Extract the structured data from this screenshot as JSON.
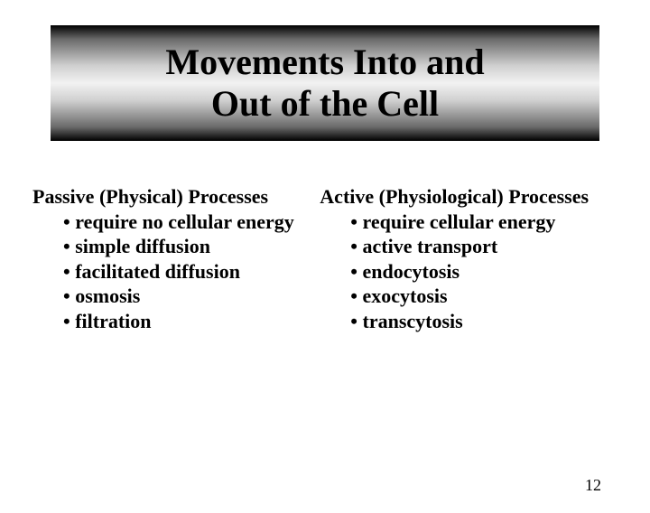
{
  "title": {
    "line1": "Movements Into and",
    "line2": "Out of the Cell",
    "fontsize": 40,
    "color": "#000000"
  },
  "banner": {
    "gradient_stops": [
      "#000000",
      "#6a6a6a",
      "#d0d0d0",
      "#f2f2f2",
      "#d0d0d0",
      "#6a6a6a",
      "#000000"
    ]
  },
  "columns": {
    "fontsize": 22,
    "left": {
      "heading": "Passive (Physical) Processes",
      "items": [
        "require no cellular energy",
        "simple diffusion",
        "facilitated diffusion",
        "osmosis",
        "filtration"
      ]
    },
    "right": {
      "heading": "Active (Physiological) Processes",
      "items": [
        "require cellular energy",
        "active transport",
        "endocytosis",
        "exocytosis",
        "transcytosis"
      ]
    }
  },
  "page_number": {
    "value": "12",
    "fontsize": 18,
    "color": "#000000"
  },
  "background_color": "#ffffff"
}
